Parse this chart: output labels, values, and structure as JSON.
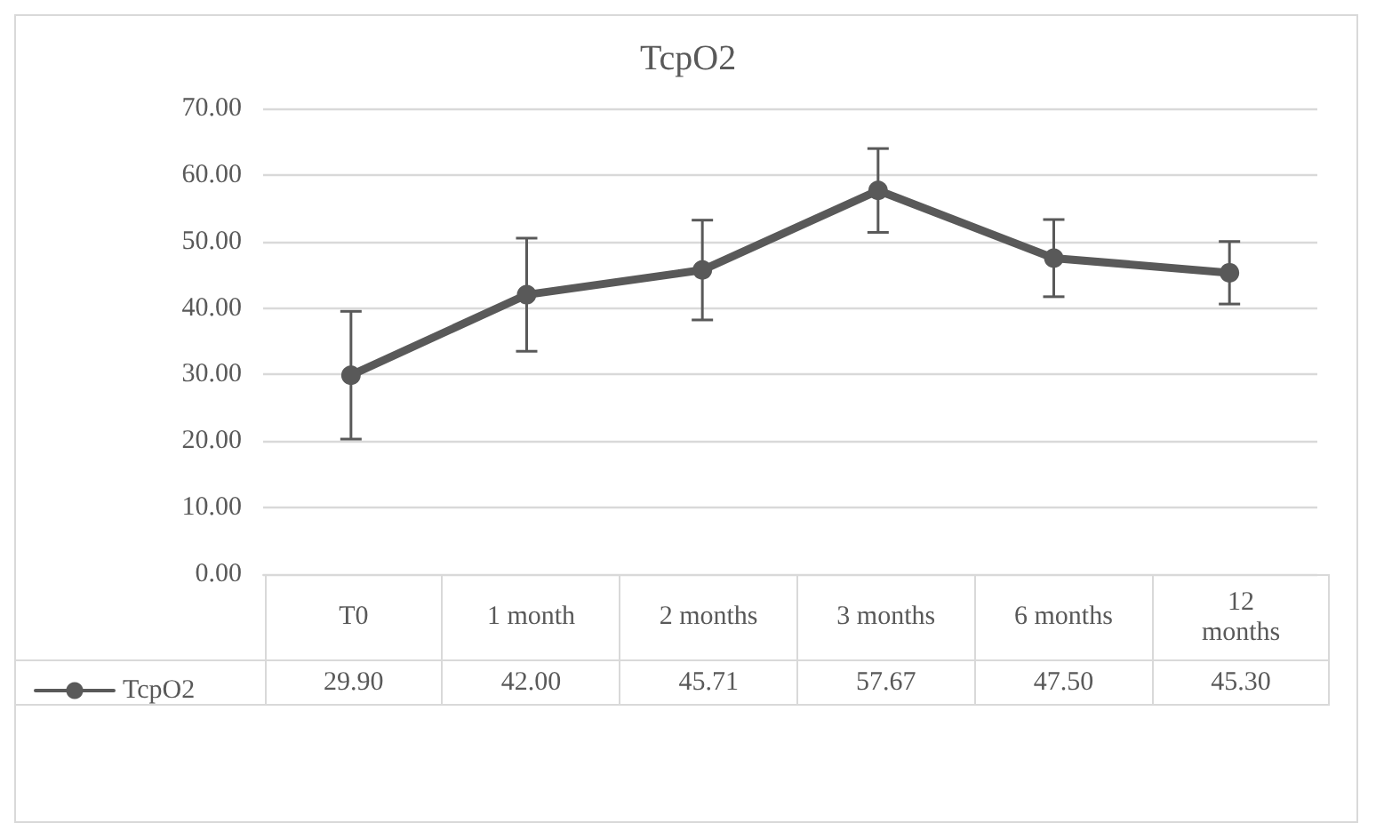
{
  "chart_data": {
    "type": "line",
    "title": "TcpO2",
    "categories": [
      "T0",
      "1 month",
      "2 months",
      "3 months",
      "6 months",
      "12 months"
    ],
    "series": [
      {
        "name": "TcpO2",
        "color": "#595959",
        "values": [
          29.9,
          42.0,
          45.71,
          57.67,
          47.5,
          45.3
        ],
        "errors": [
          9.6,
          8.5,
          7.5,
          6.3,
          5.8,
          4.7
        ],
        "value_labels": [
          "29.90",
          "42.00",
          "45.71",
          "57.67",
          "47.50",
          "45.30"
        ]
      }
    ],
    "ylim": [
      0,
      70
    ],
    "yticks": [
      {
        "value": 0,
        "label": "0.00"
      },
      {
        "value": 10,
        "label": "10.00"
      },
      {
        "value": 20,
        "label": "20.00"
      },
      {
        "value": 30,
        "label": "30.00"
      },
      {
        "value": 40,
        "label": "40.00"
      },
      {
        "value": 50,
        "label": "50.00"
      },
      {
        "value": 60,
        "label": "60.00"
      },
      {
        "value": 70,
        "label": "70.00"
      }
    ],
    "grid": "y",
    "legend": "bottom left",
    "marker": "circle",
    "line_style": "solid"
  }
}
